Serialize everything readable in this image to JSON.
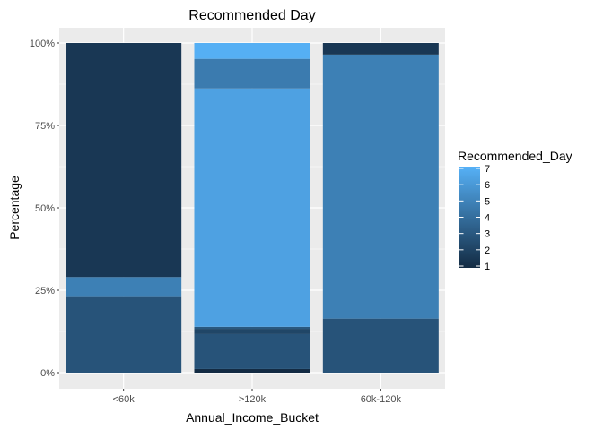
{
  "chart_data": {
    "type": "bar",
    "stacked": "percent",
    "title": "Recommended Day",
    "xlabel": "Annual_Income_Bucket",
    "ylabel": "Percentage",
    "categories": [
      "<60k",
      ">120k",
      "60k-120k"
    ],
    "ylim": [
      0,
      1
    ],
    "y_ticks": [
      0,
      0.25,
      0.5,
      0.75,
      1
    ],
    "y_tick_labels": [
      "0%",
      "25%",
      "50%",
      "75%",
      "100%"
    ],
    "grid": true,
    "legend": {
      "title": "Recommended_Day",
      "placement": "right",
      "type": "colorbar",
      "min": 1,
      "max": 7,
      "ticks": [
        1,
        2,
        3,
        4,
        5,
        6,
        7
      ],
      "colors": {
        "low": "#132b43",
        "high": "#56b1f7"
      }
    },
    "series": [
      {
        "values": [
          0,
          0.011,
          0
        ]
      },
      {
        "values": [
          0,
          0,
          0
        ]
      },
      {
        "values": [
          0.232,
          0.106,
          0.164
        ]
      },
      {
        "values": [
          0,
          0.016,
          0
        ]
      },
      {
        "values": [
          0.058,
          0,
          0.801
        ]
      },
      {
        "values": [
          0,
          0.006,
          0
        ]
      },
      {
        "values": [
          0,
          0.723,
          0
        ]
      },
      {
        "values": [
          0,
          0.09,
          0
        ]
      },
      {
        "values": [
          0,
          0.048,
          0
        ]
      },
      {
        "values": [
          0.71,
          0,
          0.035
        ]
      }
    ],
    "segment_values": [
      1.0,
      1.5,
      2.8,
      2.2,
      4.8,
      3.0,
      6.3,
      4.6,
      6.9,
      1.55
    ]
  }
}
